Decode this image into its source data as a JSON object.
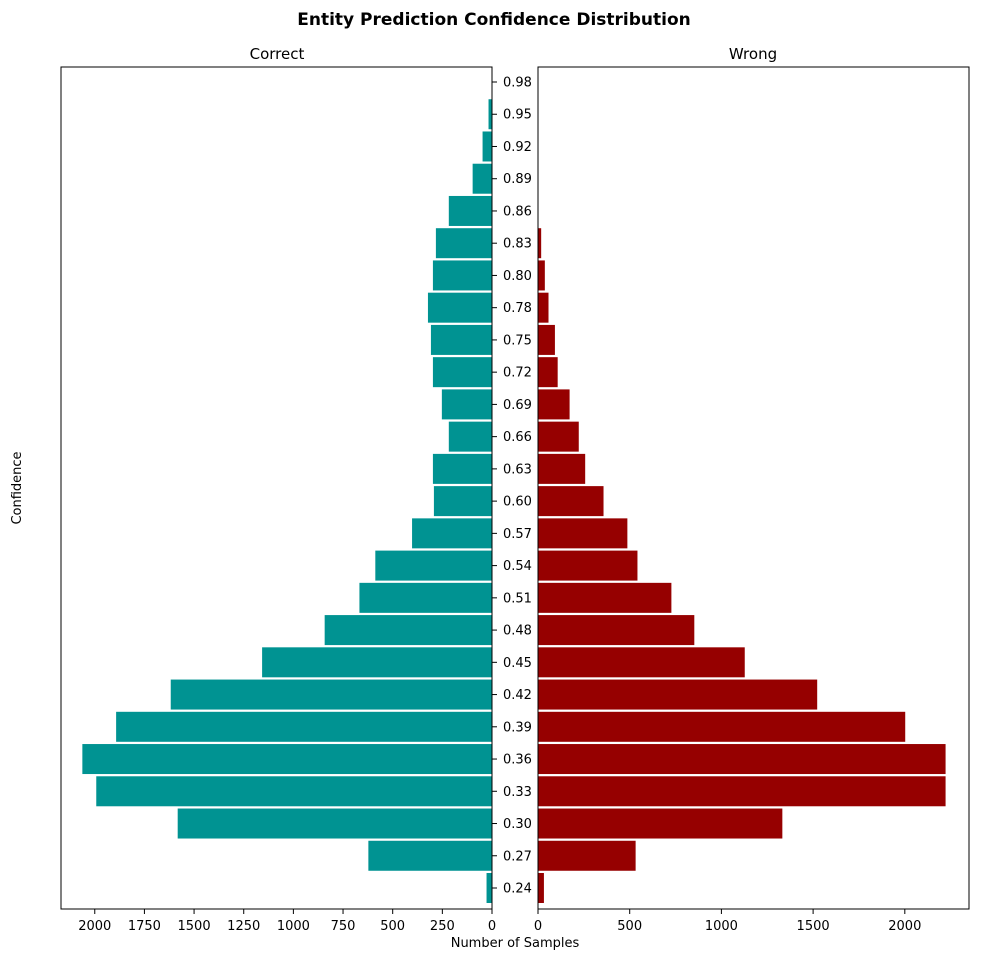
{
  "chart_data": {
    "type": "bar",
    "orientation": "horizontal",
    "title": "Entity Prediction Confidence Distribution",
    "xlabel": "Number of Samples",
    "ylabel": "Confidence",
    "categories": [
      "0.24",
      "0.27",
      "0.30",
      "0.33",
      "0.36",
      "0.39",
      "0.42",
      "0.45",
      "0.48",
      "0.51",
      "0.54",
      "0.57",
      "0.60",
      "0.63",
      "0.66",
      "0.69",
      "0.72",
      "0.75",
      "0.78",
      "0.80",
      "0.83",
      "0.86",
      "0.89",
      "0.92",
      "0.95",
      "0.98"
    ],
    "panels": [
      {
        "name": "Correct",
        "color": "#009392",
        "direction": "left",
        "xlim": [
          0,
          2170
        ],
        "xticks": [
          0,
          250,
          500,
          750,
          1000,
          1250,
          1500,
          1750,
          2000
        ],
        "values": [
          30,
          625,
          1585,
          1995,
          2065,
          1895,
          1620,
          1160,
          845,
          670,
          590,
          405,
          295,
          300,
          220,
          255,
          300,
          310,
          325,
          300,
          285,
          220,
          100,
          50,
          20,
          0
        ]
      },
      {
        "name": "Wrong",
        "color": "#960000",
        "direction": "right",
        "xlim": [
          0,
          2350
        ],
        "xticks": [
          0,
          500,
          1000,
          1500,
          2000
        ],
        "values": [
          35,
          535,
          1335,
          2225,
          2225,
          2005,
          1525,
          1130,
          855,
          730,
          545,
          490,
          360,
          260,
          225,
          175,
          110,
          95,
          60,
          40,
          20,
          0,
          0,
          0,
          0,
          0
        ]
      }
    ]
  }
}
